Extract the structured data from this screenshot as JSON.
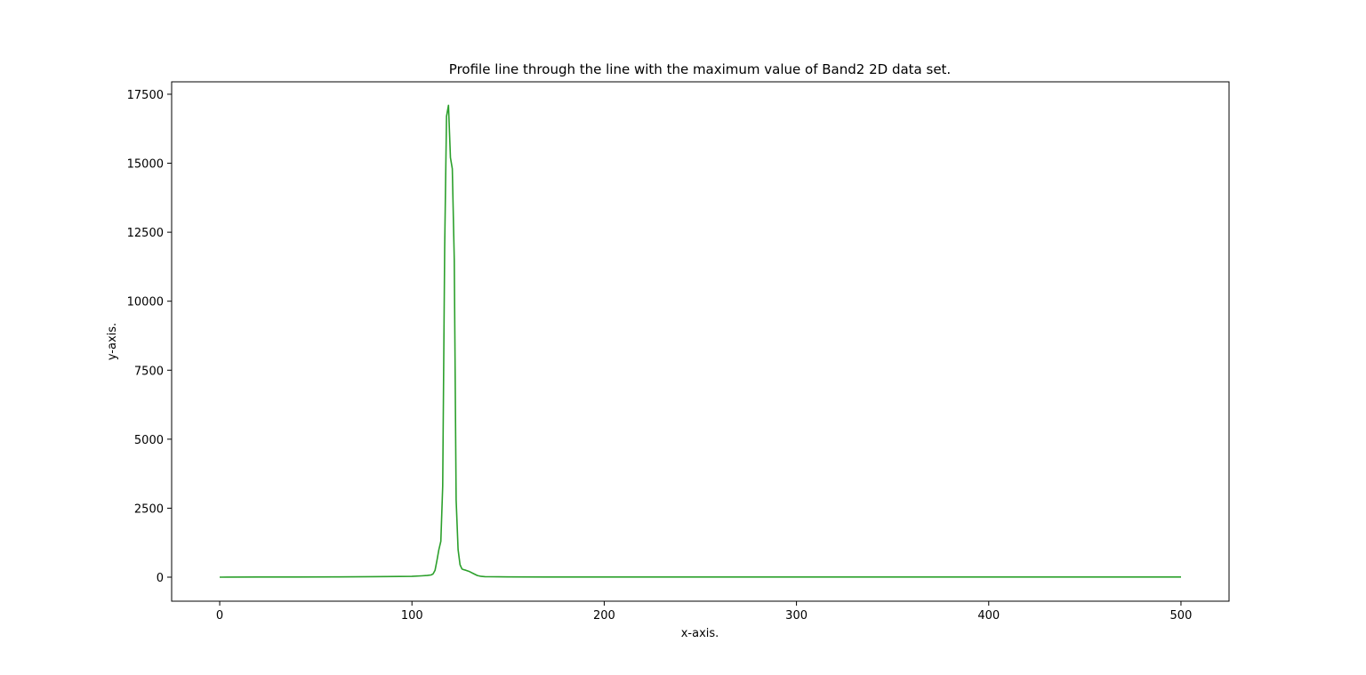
{
  "chart_data": {
    "type": "line",
    "title": "Profile line through the line with the maximum value of Band2 2D data set.",
    "xlabel": "x-axis.",
    "ylabel": "y-axis.",
    "xlim": [
      -25,
      525
    ],
    "ylim": [
      -870,
      17950
    ],
    "xticks": [
      0,
      100,
      200,
      300,
      400,
      500
    ],
    "yticks": [
      0,
      2500,
      5000,
      7500,
      10000,
      12500,
      15000,
      17500
    ],
    "grid": false,
    "legend": "none",
    "series": [
      {
        "color": "#2ca02c",
        "x": [
          0,
          20,
          40,
          60,
          80,
          100,
          105,
          108,
          110,
          111,
          112,
          113,
          114,
          115,
          116,
          117,
          118,
          119,
          120,
          121,
          122,
          123,
          124,
          125,
          126,
          127,
          128,
          130,
          132,
          134,
          136,
          138,
          140,
          145,
          150,
          170,
          200,
          250,
          300,
          350,
          400,
          450,
          500
        ],
        "y": [
          0,
          5,
          8,
          10,
          20,
          30,
          50,
          60,
          80,
          120,
          250,
          600,
          1000,
          1300,
          3300,
          11900,
          16700,
          17100,
          15200,
          14800,
          11500,
          2800,
          1000,
          450,
          300,
          270,
          250,
          200,
          130,
          60,
          30,
          20,
          15,
          12,
          10,
          8,
          5,
          5,
          5,
          5,
          5,
          5,
          5
        ]
      }
    ]
  }
}
